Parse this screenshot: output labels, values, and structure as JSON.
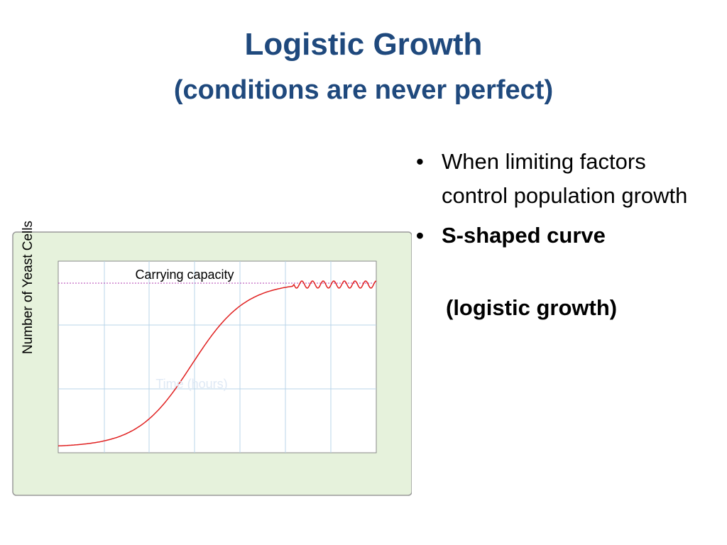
{
  "title": "Logistic Growth",
  "subtitle": "(conditions are never perfect)",
  "bullets": [
    {
      "text": "When limiting factors control population growth",
      "bold": false
    },
    {
      "text": "S-shaped curve",
      "bold": true
    }
  ],
  "continuation": "(logistic growth)",
  "figure": {
    "y_label": "Number of Yeast Cells",
    "x_label": "Time (hours)",
    "annotation": "Carrying capacity"
  }
}
